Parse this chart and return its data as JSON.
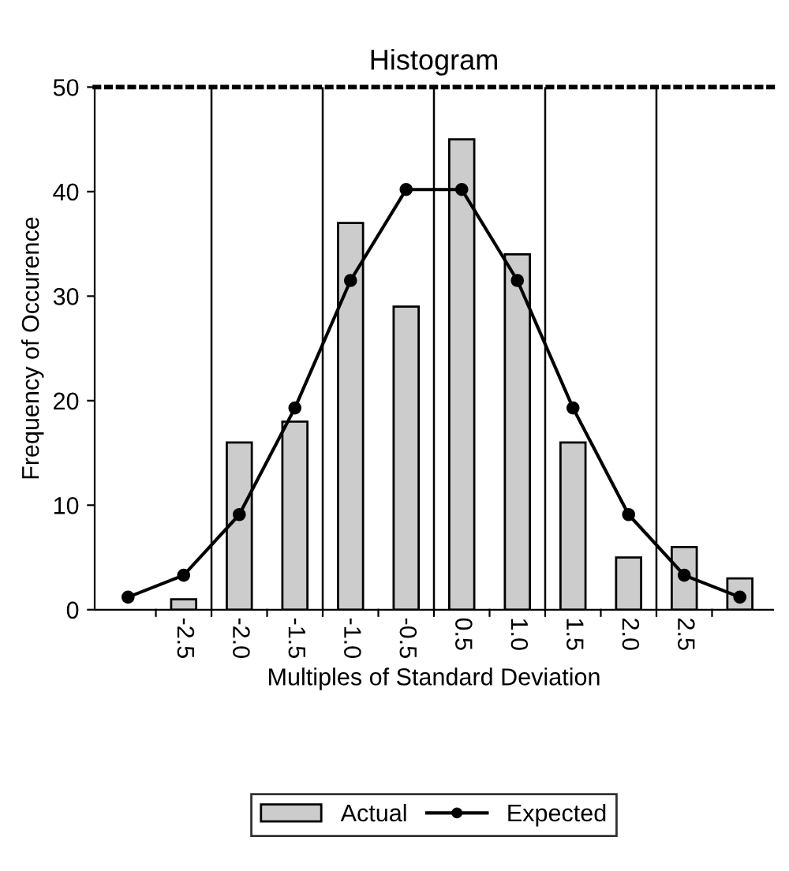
{
  "chart_data": {
    "type": "bar",
    "title": "Histogram",
    "xlabel": "Multiples of Standard Deviation",
    "ylabel": "Frequency of Occurence",
    "categories": [
      null,
      "-2.5",
      "-2.0",
      "-1.5",
      "-1.0",
      "-0.5",
      "0.5",
      "1.0",
      "1.5",
      "2.0",
      "2.5",
      null
    ],
    "series": [
      {
        "name": "Actual",
        "color": "#cccccc",
        "values": [
          null,
          1,
          16,
          18,
          37,
          29,
          45,
          34,
          16,
          5,
          6,
          3
        ]
      },
      {
        "name": "Expected",
        "type": "line",
        "color": "#000000",
        "marker": "circle",
        "line_style": "solid",
        "values": [
          1.2,
          3.3,
          9.1,
          19.3,
          31.5,
          40.2,
          40.2,
          31.5,
          19.3,
          9.1,
          3.3,
          1.2
        ]
      }
    ],
    "ylim": [
      0,
      50
    ],
    "yticks": [
      0,
      10,
      20,
      30,
      40,
      50
    ],
    "grid": "x",
    "legend": "bottom"
  }
}
